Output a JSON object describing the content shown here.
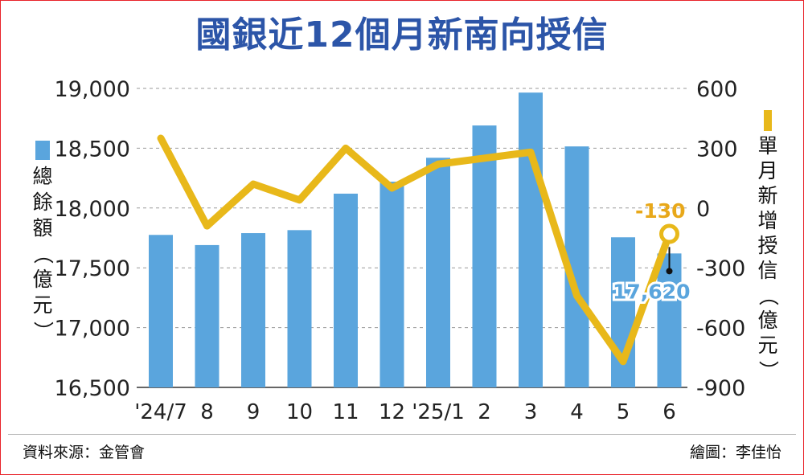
{
  "title": "國銀近12個月新南向授信",
  "source": "資料來源：金管會",
  "credit": "繪圖：李佳怡",
  "chart_data": {
    "type": "bar+line",
    "categories": [
      "'24/7",
      "8",
      "9",
      "10",
      "11",
      "12",
      "'25/1",
      "2",
      "3",
      "4",
      "5",
      "6"
    ],
    "series": [
      {
        "name": "總餘額（億元）",
        "type": "bar",
        "axis": "left",
        "color": "#5aa5dd",
        "values": [
          17775,
          17690,
          17790,
          17815,
          18120,
          18220,
          18420,
          18690,
          18965,
          18515,
          17755,
          17620
        ]
      },
      {
        "name": "單月新增授信（億元）",
        "type": "line",
        "axis": "right",
        "color": "#e8b81a",
        "values": [
          350,
          -90,
          120,
          40,
          300,
          100,
          220,
          250,
          280,
          -440,
          -770,
          -130
        ]
      }
    ],
    "y_left": {
      "ticks": [
        "19,000",
        "18,500",
        "18,000",
        "17,500",
        "17,000",
        "16,500"
      ],
      "range": [
        16500,
        19000
      ],
      "label": "總餘額（億元）"
    },
    "y_right": {
      "ticks": [
        "600",
        "300",
        "0",
        "-300",
        "-600",
        "-900"
      ],
      "range": [
        -900,
        600
      ],
      "label": "單月新增授信（億元）"
    },
    "annotations": [
      {
        "text": "-130",
        "series": "line",
        "index": 11,
        "color": "#e8a81a"
      },
      {
        "text": "17,620",
        "series": "bar",
        "index": 11,
        "color": "#5aa5dd"
      }
    ],
    "grid": true
  }
}
